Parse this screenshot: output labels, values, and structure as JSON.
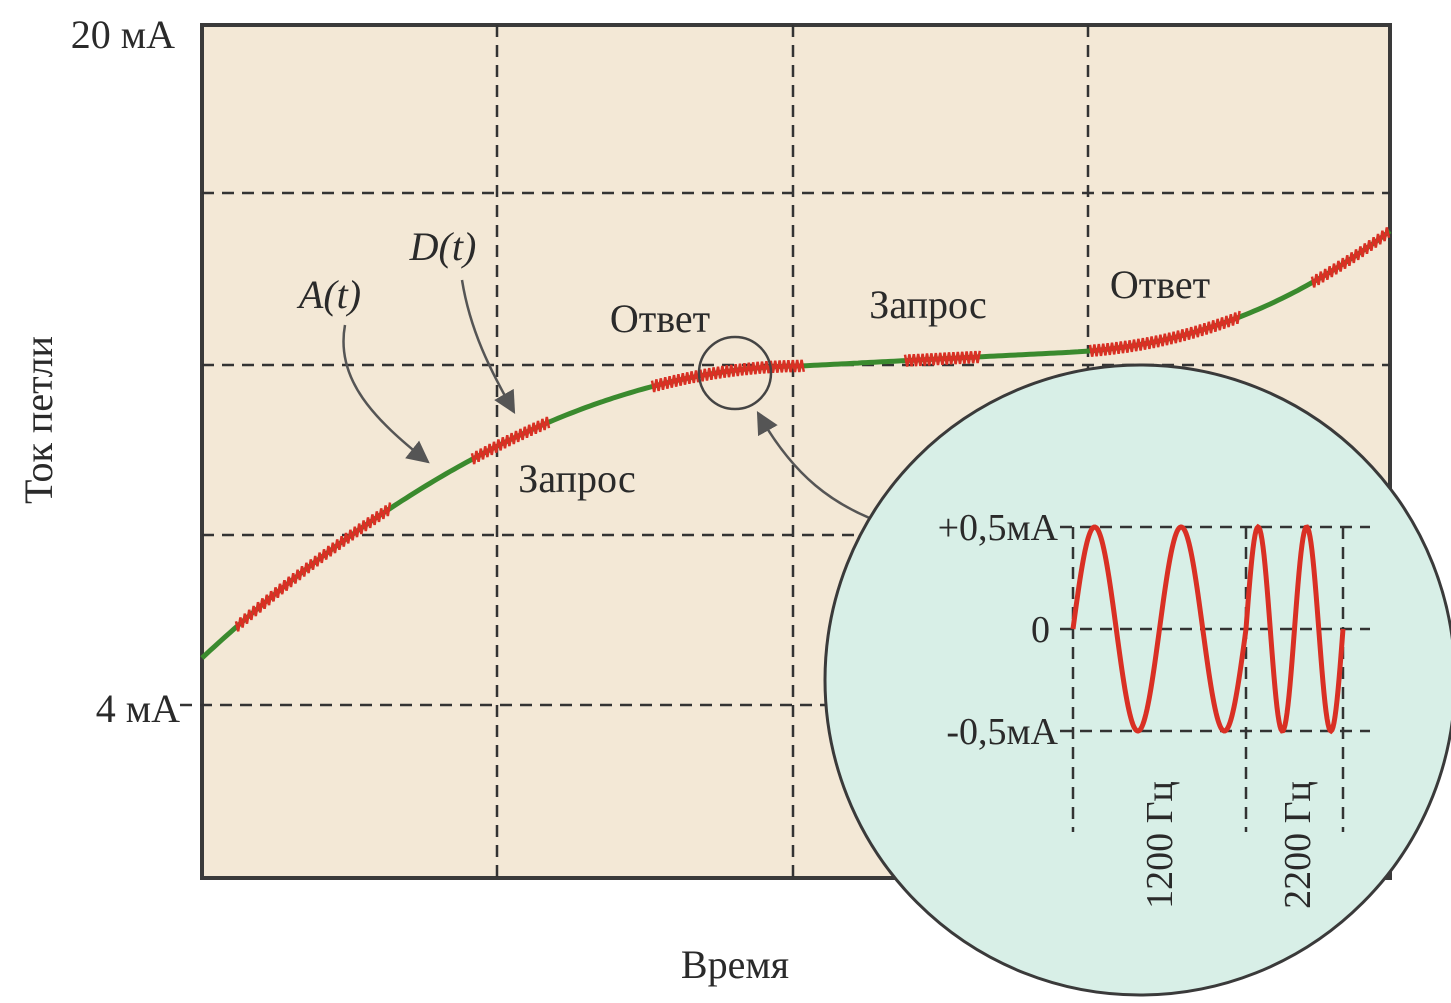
{
  "colors": {
    "plot_bg": "#f3e8d6",
    "inset_bg": "#d8efe7",
    "analog_line": "#3a8a2e",
    "digital_signal": "#d93024"
  },
  "axes": {
    "y_top": "20 мА",
    "y_bottom": "4 мА",
    "y_title": "Ток петли",
    "x_title": "Время"
  },
  "callouts": {
    "analog": "A(t)",
    "digital": "D(t)"
  },
  "bursts": {
    "request_1": "Запрос",
    "response_1": "Ответ",
    "request_2": "Запрос",
    "response_2": "Ответ"
  },
  "inset": {
    "y_plus": "+0,5мА",
    "y_zero": "0",
    "y_minus": "-0,5мА",
    "freq_low": "1200 Гц",
    "freq_high": "2200 Гц"
  }
}
